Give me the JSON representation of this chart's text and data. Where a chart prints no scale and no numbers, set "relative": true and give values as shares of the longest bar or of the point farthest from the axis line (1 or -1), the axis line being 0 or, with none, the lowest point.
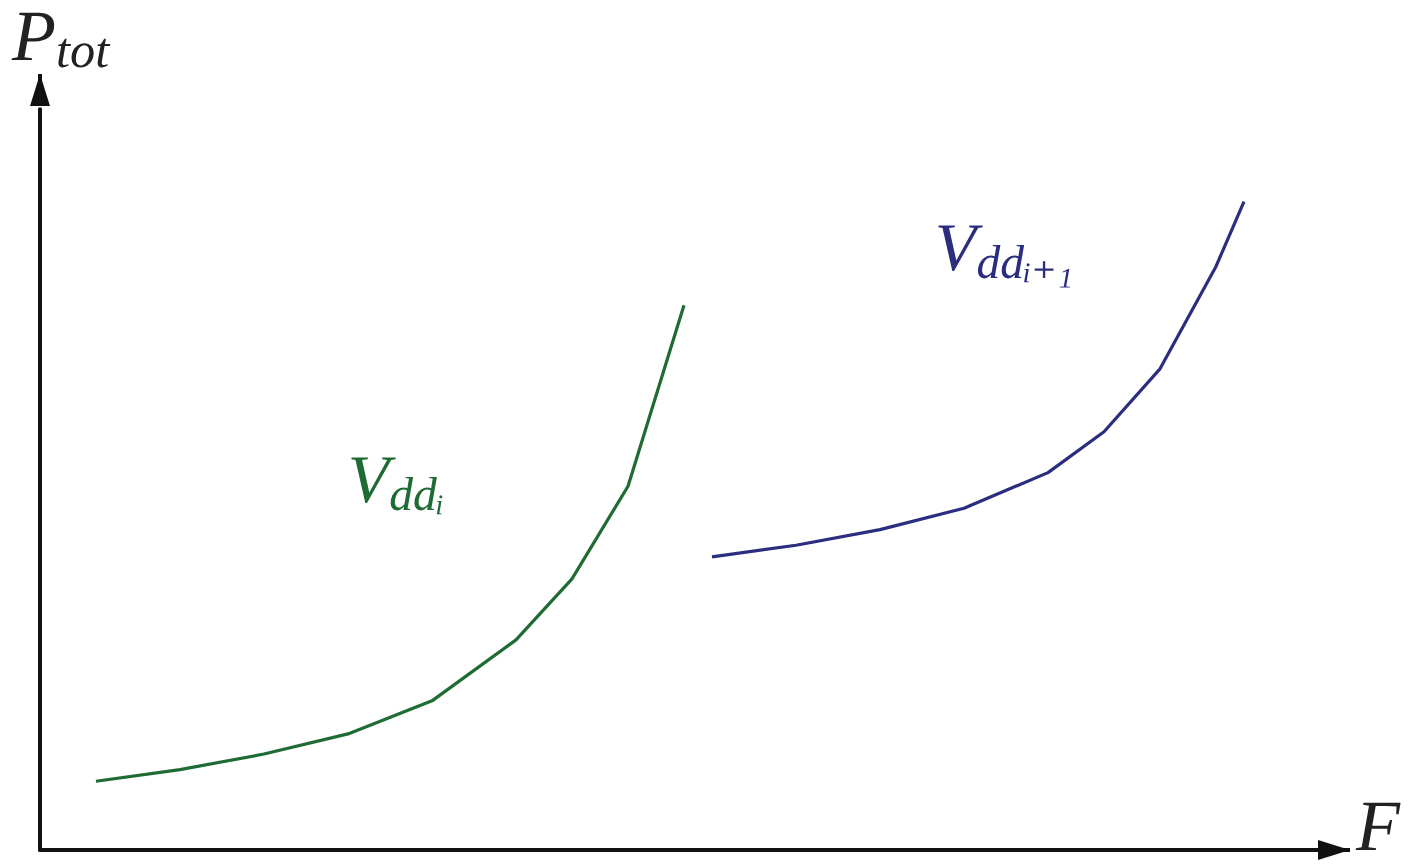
{
  "chart_data": {
    "type": "line",
    "relative": true,
    "xlabel": "F",
    "ylabel": "P$_{tot}$",
    "categories": [
      null,
      null,
      null,
      null,
      null,
      null,
      null,
      null,
      null,
      null,
      null,
      null,
      null,
      null,
      null,
      null,
      null,
      null,
      null,
      null,
      null,
      null,
      null,
      null,
      null,
      null,
      null,
      null,
      null,
      null,
      null,
      null,
      null,
      null,
      null,
      null,
      null,
      null,
      null,
      null,
      null,
      null,
      null,
      null,
      null,
      null,
      null
    ],
    "series": [
      {
        "name": "V$_{ddᵢ}$",
        "color": "#1e6b34",
        "values": [
          null,
          null,
          0.106,
          null,
          null,
          0.124,
          null,
          null,
          0.148,
          null,
          null,
          0.179,
          null,
          null,
          0.23,
          null,
          null,
          0.324,
          null,
          0.418,
          null,
          0.561,
          null,
          0.84,
          null,
          null,
          null,
          null,
          null,
          null,
          null,
          null,
          null,
          null,
          null,
          null,
          null,
          null,
          null,
          null,
          null,
          null,
          null,
          null,
          null,
          null,
          null
        ]
      },
      {
        "name": "V$_{ddᵢ₊₁}$",
        "color": "#2b2d7e",
        "values": [
          null,
          null,
          null,
          null,
          null,
          null,
          null,
          null,
          null,
          null,
          null,
          null,
          null,
          null,
          null,
          null,
          null,
          null,
          null,
          null,
          null,
          null,
          null,
          null,
          0.452,
          null,
          null,
          0.47,
          null,
          null,
          0.494,
          null,
          null,
          0.527,
          null,
          null,
          0.582,
          null,
          0.645,
          null,
          0.742,
          null,
          0.9,
          1.0,
          null,
          null,
          null
        ]
      }
    ],
    "legend": false,
    "grid": false,
    "marker": "none",
    "line_style": "solid"
  }
}
